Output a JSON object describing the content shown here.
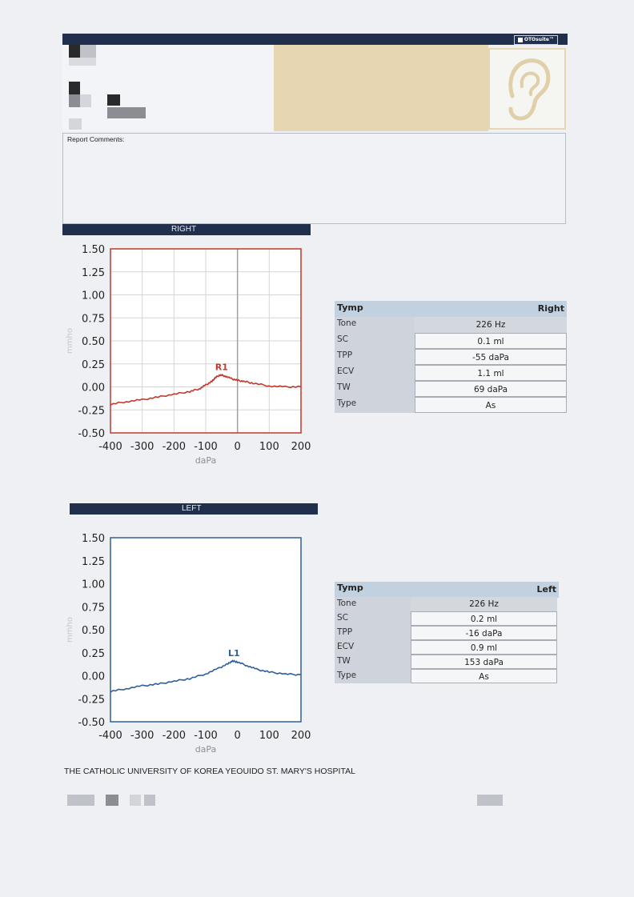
{
  "header": {
    "logo_text": "OTOsuite™",
    "report_comments_label": "Report Comments:",
    "report_comments": ""
  },
  "right": {
    "section_title": "RIGHT",
    "peak_label": "R1",
    "table": {
      "title": "Tymp",
      "ear": "Right",
      "rows": [
        {
          "label": "Tone",
          "value": "226 Hz"
        },
        {
          "label": "SC",
          "value": "0.1 ml"
        },
        {
          "label": "TPP",
          "value": "-55 daPa"
        },
        {
          "label": "ECV",
          "value": "1.1 ml"
        },
        {
          "label": "TW",
          "value": "69 daPa"
        },
        {
          "label": "Type",
          "value": "As"
        }
      ]
    }
  },
  "left": {
    "section_title": "LEFT",
    "peak_label": "L1",
    "table": {
      "title": "Tymp",
      "ear": "Left",
      "rows": [
        {
          "label": "Tone",
          "value": "226 Hz"
        },
        {
          "label": "SC",
          "value": "0.2 ml"
        },
        {
          "label": "TPP",
          "value": "-16 daPa"
        },
        {
          "label": "ECV",
          "value": "0.9 ml"
        },
        {
          "label": "TW",
          "value": "153 daPa"
        },
        {
          "label": "Type",
          "value": "As"
        }
      ]
    }
  },
  "chart_data": [
    {
      "type": "line",
      "xlabel": "daPa",
      "ylabel": "mmho",
      "xlim": [
        -400,
        200
      ],
      "ylim": [
        -0.5,
        1.5
      ],
      "x_ticks": [
        -400,
        -300,
        -200,
        -100,
        0,
        100,
        200
      ],
      "y_ticks": [
        "1.50",
        "1.25",
        "1.00",
        "0.75",
        "0.50",
        "0.25",
        "0.00",
        "-0.25",
        "-0.50"
      ],
      "grid": true,
      "color": "#c0392b",
      "series": [
        {
          "x": [
            -400,
            -350,
            -300,
            -250,
            -200,
            -150,
            -120,
            -100,
            -80,
            -70,
            -55,
            -40,
            -20,
            0,
            20,
            50,
            100,
            150,
            200
          ],
          "y": [
            -0.19,
            -0.16,
            -0.14,
            -0.11,
            -0.08,
            -0.05,
            -0.02,
            0.02,
            0.06,
            0.1,
            0.13,
            0.12,
            0.09,
            0.07,
            0.06,
            0.04,
            0.01,
            0.0,
            0.0
          ]
        }
      ],
      "annotations": [
        {
          "text": "R1",
          "x": -55,
          "y": 0.13
        }
      ]
    },
    {
      "type": "line",
      "xlabel": "daPa",
      "ylabel": "mmho",
      "xlim": [
        -400,
        200
      ],
      "ylim": [
        -0.5,
        1.5
      ],
      "x_ticks": [
        -400,
        -300,
        -200,
        -100,
        0,
        100,
        200
      ],
      "y_ticks": [
        "1.50",
        "1.25",
        "1.00",
        "0.75",
        "0.50",
        "0.25",
        "0.00",
        "-0.25",
        "-0.50"
      ],
      "grid": false,
      "color": "#2f5f9a",
      "series": [
        {
          "x": [
            -400,
            -350,
            -300,
            -250,
            -200,
            -150,
            -100,
            -60,
            -30,
            -16,
            0,
            30,
            60,
            100,
            150,
            200
          ],
          "y": [
            -0.17,
            -0.14,
            -0.11,
            -0.09,
            -0.06,
            -0.03,
            0.02,
            0.08,
            0.13,
            0.16,
            0.15,
            0.11,
            0.07,
            0.04,
            0.02,
            0.01
          ]
        }
      ],
      "annotations": [
        {
          "text": "L1",
          "x": -16,
          "y": 0.16
        }
      ]
    }
  ],
  "footer": {
    "hospital": "THE CATHOLIC UNIVERSITY OF KOREA YEOUIDO ST. MARY'S HOSPITAL"
  }
}
